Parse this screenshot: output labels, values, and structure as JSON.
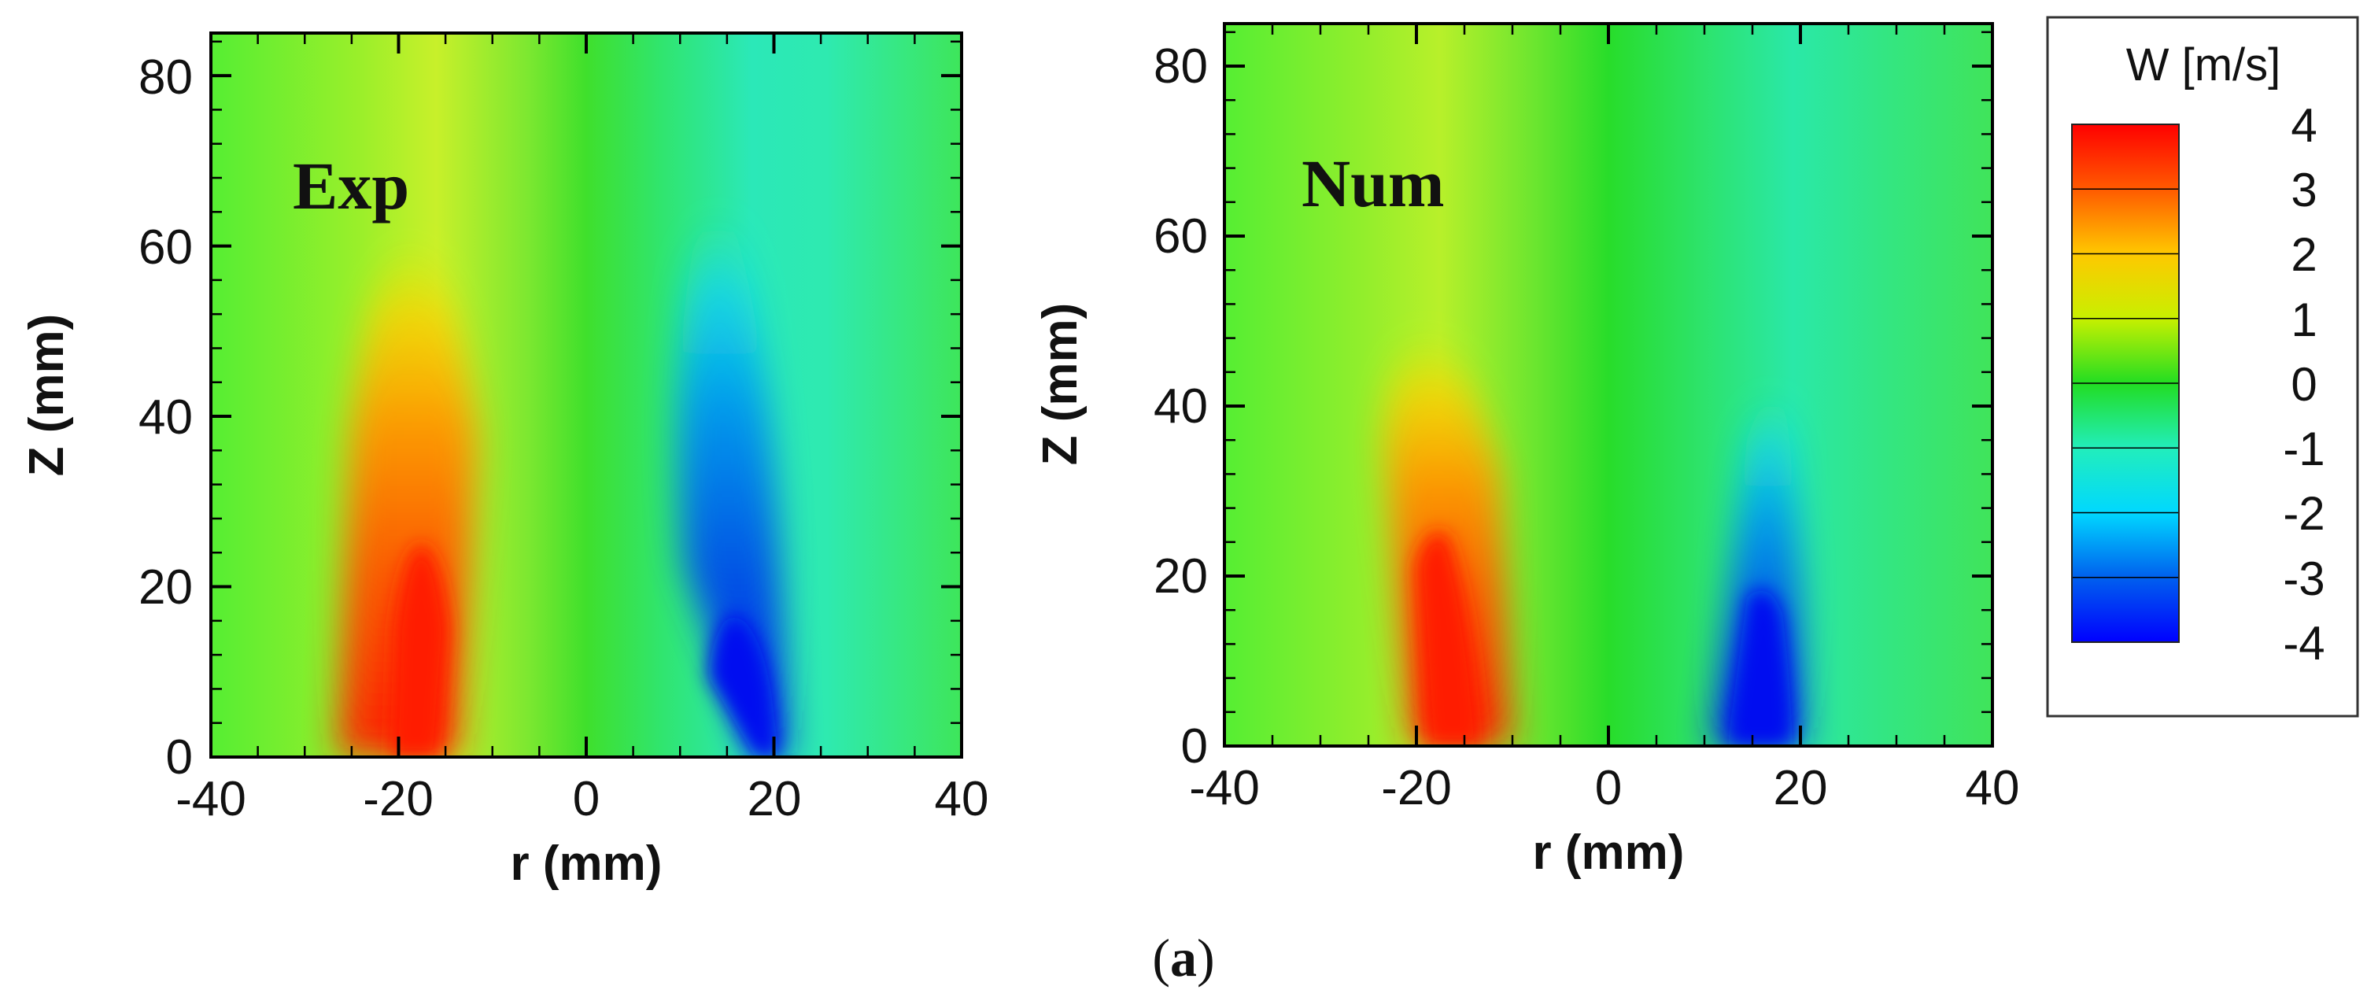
{
  "chart_data": [
    {
      "type": "heatmap",
      "panel_label": "Exp",
      "xlabel": "r (mm)",
      "ylabel": "Z (mm)",
      "xlim": [
        -40,
        40
      ],
      "ylim": [
        0,
        85
      ],
      "xticks": [
        "-40",
        "-20",
        "0",
        "20",
        "40"
      ],
      "yticks": [
        "0",
        "20",
        "40",
        "60",
        "80"
      ],
      "field": "W [m/s]",
      "features": [
        {
          "name": "positive jet",
          "r": -18,
          "z_bottom": 0,
          "z_top": 40,
          "peak": 3.2
        },
        {
          "name": "negative jet",
          "r": 18,
          "z_bottom": 0,
          "z_top": 40,
          "peak": -3.3
        }
      ]
    },
    {
      "type": "heatmap",
      "panel_label": "Num",
      "xlabel": "r (mm)",
      "ylabel": "Z (mm)",
      "xlim": [
        -40,
        40
      ],
      "ylim": [
        0,
        85
      ],
      "xticks": [
        "-40",
        "-20",
        "0",
        "20",
        "40"
      ],
      "yticks": [
        "0",
        "20",
        "40",
        "60",
        "80"
      ],
      "field": "W [m/s]",
      "features": [
        {
          "name": "positive jet",
          "r": -17,
          "z_bottom": 0,
          "z_top": 40,
          "peak": 3.6
        },
        {
          "name": "negative jet",
          "r": 16,
          "z_bottom": 0,
          "z_top": 35,
          "peak": -3.6
        }
      ]
    }
  ],
  "colorbar": {
    "title": "W [m/s]",
    "min": -4,
    "max": 4,
    "labels": [
      "4",
      "3",
      "2",
      "1",
      "0",
      "-1",
      "-2",
      "-3",
      "-4"
    ],
    "colors": [
      "#ff0000",
      "#ff6a00",
      "#ffd000",
      "#c8f000",
      "#22dd22",
      "#22eebb",
      "#00d8ff",
      "#0055ee",
      "#0000ff"
    ]
  },
  "caption": {
    "open": "(",
    "letter": "a",
    "close": ")"
  }
}
